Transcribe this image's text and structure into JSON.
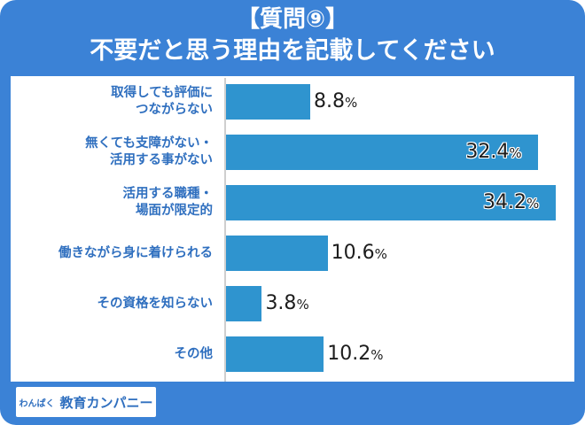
{
  "title": {
    "line1": "【質問⑨】",
    "line2": "不要だと思う理由を記載してください"
  },
  "logo": {
    "small_text": "わんぱく",
    "main_text": "教育カンパニー"
  },
  "colors": {
    "frame": "#3b82d6",
    "bar": "#2f94cf",
    "label": "#2f6fbf"
  },
  "chart_data": {
    "type": "bar",
    "orientation": "horizontal",
    "categories": [
      [
        "取得しても評価に",
        "つながらない"
      ],
      [
        "無くても支障がない・",
        "活用する事がない"
      ],
      [
        "活用する職種・",
        "場面が限定的"
      ],
      [
        "働きながら身に着けられる"
      ],
      [
        "その資格を知らない"
      ],
      [
        "その他"
      ]
    ],
    "values": [
      8.8,
      32.4,
      34.2,
      10.6,
      3.8,
      10.2
    ],
    "value_labels": [
      "8.8",
      "32.4",
      "34.2",
      "10.6",
      "3.8",
      "10.2"
    ],
    "unit": "%",
    "xlim": [
      0,
      36.5
    ]
  }
}
